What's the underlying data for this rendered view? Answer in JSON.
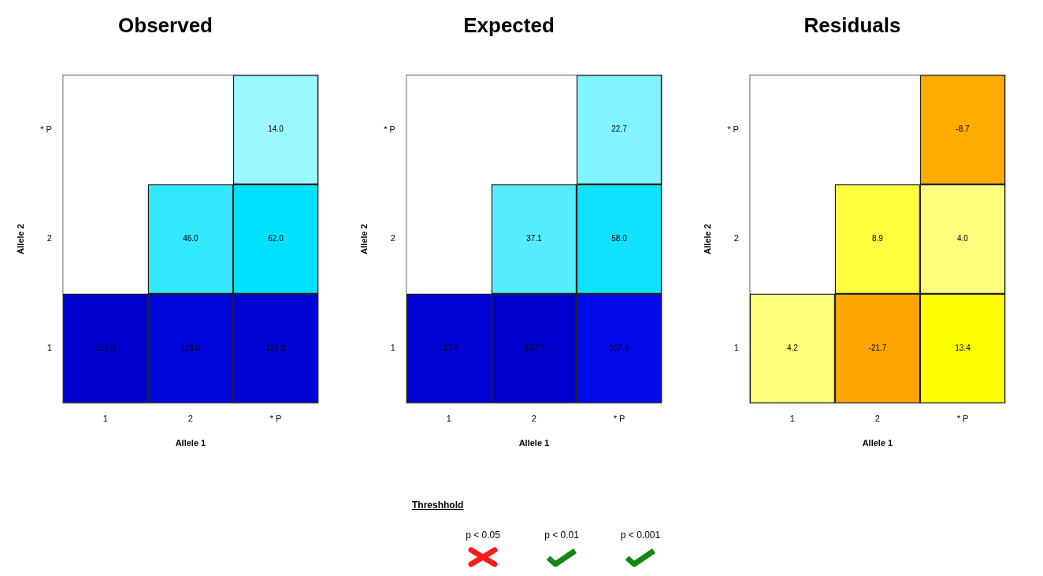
{
  "chart_data": [
    {
      "type": "heatmap",
      "title": "Observed",
      "xlabel": "Allele 1",
      "ylabel": "Allele 2",
      "categories": [
        "1",
        "2",
        "* P"
      ],
      "y_categories": [
        "* P",
        "2",
        "1"
      ],
      "cells": [
        [
          null,
          null,
          14.0
        ],
        [
          null,
          46.0,
          62.0
        ],
        [
          132.0,
          116.0,
          121.0
        ]
      ],
      "data_labels": true,
      "cell_labels": [
        [
          null,
          null,
          "14.0"
        ],
        [
          null,
          "46.0",
          "62.0"
        ],
        [
          "132.0",
          "116.0",
          "121.0"
        ]
      ],
      "grid": false
    },
    {
      "type": "heatmap",
      "title": "Expected",
      "xlabel": "Allele 1",
      "ylabel": "Allele 2",
      "categories": [
        "1",
        "2",
        "* P"
      ],
      "y_categories": [
        "* P",
        "2",
        "1"
      ],
      "cells": [
        [
          null,
          null,
          22.7
        ],
        [
          null,
          37.1,
          58.0
        ],
        [
          127.8,
          137.7,
          107.6
        ]
      ],
      "data_labels": true,
      "cell_labels": [
        [
          null,
          null,
          "22.7"
        ],
        [
          null,
          "37.1",
          "58.0"
        ],
        [
          "127.8",
          "137.7",
          "107.6"
        ]
      ],
      "grid": false
    },
    {
      "type": "heatmap",
      "title": "Residuals",
      "xlabel": "Allele 1",
      "ylabel": "Allele 2",
      "categories": [
        "1",
        "2",
        "* P"
      ],
      "y_categories": [
        "* P",
        "2",
        "1"
      ],
      "cells": [
        [
          null,
          null,
          -8.7
        ],
        [
          null,
          8.9,
          4.0
        ],
        [
          4.2,
          -21.7,
          13.4
        ]
      ],
      "data_labels": true,
      "cell_labels": [
        [
          null,
          null,
          "-8.7"
        ],
        [
          null,
          "8.9",
          "4.0"
        ],
        [
          "4.2",
          "-21.7",
          "13.4"
        ]
      ],
      "grid": false
    },
    {
      "type": "other",
      "title": "Threshhold",
      "annotations": [
        "p < 0.05",
        "p < 0.01",
        "p < 0.001"
      ]
    }
  ]
}
